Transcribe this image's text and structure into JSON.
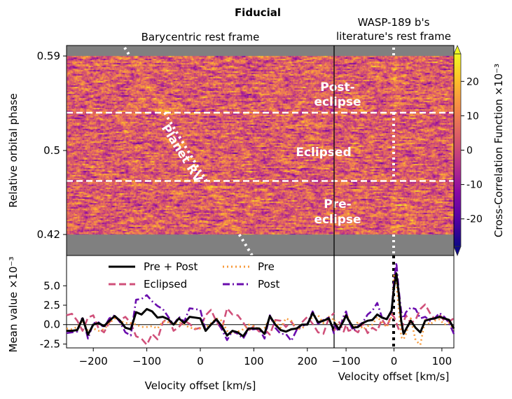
{
  "chart_data": [
    {
      "type": "heatmap",
      "title": "Fiducial",
      "panels": [
        {
          "subtitle": "Barycentric rest frame",
          "xlim": [
            -250,
            250
          ]
        },
        {
          "subtitle_lines": [
            "WASP-189 b's",
            "literature's rest frame"
          ],
          "xlim": [
            -125,
            125
          ]
        }
      ],
      "ylabel": "Relative orbital phase",
      "yticks": [
        "0.59",
        "0.5",
        "0.42"
      ],
      "ytick_values": [
        0.59,
        0.5,
        0.42
      ],
      "ylim": [
        0.4,
        0.6
      ],
      "data_range": [
        0.42,
        0.59
      ],
      "region_boundaries": [
        0.536,
        0.471
      ],
      "regions": [
        {
          "line1": "Post-",
          "line2": "eclipse"
        },
        {
          "line1": "Eclipsed"
        },
        {
          "line1": "Pre-",
          "line2": "eclipse"
        }
      ],
      "planet_track_label": "Planet RV",
      "colormap": "plasma",
      "colorbar": {
        "label": "Cross-Correlation Function ×10⁻³",
        "ticks": [
          "20",
          "10",
          "0",
          "-10",
          "-20"
        ],
        "tick_values": [
          20,
          10,
          0,
          -10,
          -20
        ],
        "range": [
          -28,
          28
        ],
        "extend": "both"
      },
      "nodata_color": "#808080"
    },
    {
      "type": "line",
      "ylabel": "Mean value ×10⁻³",
      "yticks": [
        "5.0",
        "2.5",
        "0.0",
        "-2.5"
      ],
      "ytick_values": [
        5.0,
        2.5,
        0.0,
        -2.5
      ],
      "ylim": [
        -3.0,
        8.9
      ],
      "xlabel": "Velocity offset [km/s]",
      "legend": "top-center",
      "left_panel": {
        "xlim": [
          -250,
          250
        ],
        "xticks": [
          "−200",
          "−100",
          "0",
          "100",
          "200"
        ],
        "xtick_values": [
          -200,
          -100,
          0,
          100,
          200
        ],
        "x": [
          -250,
          -240,
          -230,
          -220,
          -210,
          -200,
          -190,
          -180,
          -170,
          -160,
          -150,
          -140,
          -130,
          -120,
          -110,
          -100,
          -90,
          -80,
          -70,
          -60,
          -50,
          -40,
          -30,
          -20,
          -10,
          0,
          10,
          20,
          30,
          40,
          50,
          60,
          70,
          80,
          90,
          100,
          110,
          120,
          130,
          140,
          150,
          160,
          170,
          180,
          190,
          200,
          210,
          220,
          230,
          240,
          250
        ],
        "series": [
          {
            "name": "Pre + Post",
            "color": "#000000",
            "style": "solid",
            "values": [
              -0.8,
              -0.8,
              -0.7,
              0.8,
              -1.3,
              0.0,
              0.2,
              -0.2,
              0.5,
              1.1,
              0.5,
              -0.4,
              -0.6,
              1.6,
              1.3,
              2.0,
              1.7,
              0.9,
              1.0,
              0.7,
              0.0,
              0.8,
              0.2,
              1.0,
              0.9,
              0.8,
              -0.8,
              0.0,
              0.7,
              -0.2,
              -1.4,
              -0.8,
              -1.0,
              -1.5,
              -0.5,
              -0.5,
              -0.5,
              -1.2,
              1.1,
              0.0,
              -0.7,
              -0.9,
              -0.6,
              -0.5,
              0.0,
              0.0,
              1.5,
              0.3,
              0.5,
              0.8,
              -0.8
            ]
          },
          {
            "name": "Eclipsed",
            "color": "#d0507a",
            "style": "dashed",
            "values": [
              1.2,
              1.4,
              0.5,
              -0.8,
              0.9,
              1.2,
              -0.5,
              -1.0,
              0.3,
              0.9,
              0.6,
              1.0,
              0.2,
              -1.5,
              -1.8,
              -2.6,
              -1.2,
              -1.9,
              0.3,
              0.9,
              -0.8,
              -0.3,
              0.5,
              0.1,
              -0.6,
              -0.4,
              1.2,
              1.9,
              0.4,
              -0.6,
              2.1,
              1.3,
              1.2,
              0.3,
              -0.8,
              -0.2,
              -0.9,
              -0.6,
              -1.3,
              0.6,
              0.5,
              -0.3,
              0.4,
              -0.7,
              0.3,
              1.0,
              0.1,
              -1.0,
              -1.2,
              0.8,
              1.5
            ]
          },
          {
            "name": "Pre",
            "color": "#f89a3a",
            "style": "dotted",
            "values": [
              -0.5,
              -0.6,
              -0.3,
              0.5,
              -0.8,
              -0.5,
              -0.8,
              -0.6,
              0.2,
              0.8,
              0.5,
              0.2,
              0.2,
              0.0,
              -0.3,
              -0.3,
              -0.2,
              -0.5,
              0.4,
              0.3,
              0.1,
              0.3,
              0.0,
              -0.4,
              -0.5,
              -0.5,
              -0.4,
              0.2,
              0.8,
              0.5,
              -0.8,
              -1.2,
              -0.9,
              -0.6,
              0.0,
              -0.2,
              -0.6,
              -0.4,
              0.8,
              0.4,
              -0.4,
              0.8,
              0.5,
              -0.6,
              -0.5,
              0.2,
              1.0,
              1.2,
              0.2,
              1.0,
              0.6
            ]
          },
          {
            "name": "Post",
            "color": "#6a0dad",
            "style": "dashdot",
            "values": [
              -1.1,
              -1.0,
              -0.9,
              1.0,
              -1.8,
              0.2,
              0.3,
              -0.4,
              0.8,
              1.2,
              0.3,
              -1.0,
              -1.4,
              3.2,
              3.3,
              3.8,
              3.0,
              2.4,
              2.0,
              1.0,
              0.0,
              1.0,
              0.4,
              2.1,
              2.0,
              1.9,
              -0.8,
              0.0,
              0.6,
              -0.6,
              -2.0,
              -0.8,
              -1.2,
              -1.8,
              -0.6,
              -0.6,
              -0.5,
              -1.8,
              1.2,
              -0.4,
              -1.2,
              -1.2,
              -2.1,
              -0.7,
              -0.2,
              0.1,
              1.7,
              0.1,
              0.6,
              0.9,
              -1.2
            ]
          }
        ]
      },
      "right_panel": {
        "xlim": [
          -125,
          125
        ],
        "xticks": [
          "−100",
          "0",
          "100"
        ],
        "xtick_values": [
          -100,
          0,
          100
        ],
        "x": [
          -125,
          -115,
          -105,
          -100,
          -95,
          -85,
          -75,
          -65,
          -55,
          -45,
          -35,
          -25,
          -15,
          -5,
          0,
          5,
          10,
          15,
          20,
          25,
          35,
          45,
          55,
          65,
          75,
          85,
          95,
          105,
          115,
          125
        ],
        "series": [
          {
            "name": "Pre + Post",
            "values": [
              0.3,
              -0.6,
              0.5,
              1.2,
              0.6,
              -0.4,
              -0.3,
              0.2,
              0.5,
              0.6,
              1.3,
              0.9,
              0.7,
              1.8,
              4.8,
              6.6,
              4.0,
              0.5,
              -1.2,
              -0.6,
              0.5,
              -0.4,
              -1.0,
              0.5,
              0.7,
              0.8,
              1.0,
              0.8,
              0.6,
              -0.5
            ]
          },
          {
            "name": "Eclipsed",
            "values": [
              -0.8,
              0.4,
              -0.9,
              0.0,
              -0.8,
              -0.6,
              -1.0,
              0.2,
              -1.1,
              -0.4,
              -0.8,
              0.7,
              -0.3,
              1.3,
              1.0,
              0.2,
              -0.6,
              -0.8,
              0.3,
              1.2,
              0.2,
              0.6,
              2.0,
              2.6,
              1.5,
              0.7,
              1.3,
              0.5,
              0.4,
              0.8
            ]
          },
          {
            "name": "Pre",
            "values": [
              0.6,
              -0.4,
              1.0,
              1.5,
              0.8,
              -0.6,
              0.4,
              -0.6,
              -0.2,
              0.0,
              1.0,
              0.3,
              -0.3,
              1.0,
              6.3,
              5.5,
              2.0,
              -1.6,
              -1.9,
              -1.2,
              0.8,
              -2.0,
              -2.6,
              0.6,
              0.0,
              0.5,
              0.7,
              0.0,
              0.2,
              -0.6
            ]
          },
          {
            "name": "Post",
            "values": [
              0.0,
              -0.9,
              1.1,
              1.7,
              0.5,
              -0.8,
              -0.2,
              0.3,
              1.3,
              1.8,
              2.8,
              0.9,
              0.8,
              1.6,
              5.5,
              8.0,
              4.5,
              1.7,
              0.8,
              1.6,
              2.2,
              2.0,
              0.8,
              1.0,
              0.5,
              0.8,
              1.5,
              1.0,
              0.2,
              -1.2
            ]
          }
        ]
      }
    }
  ]
}
